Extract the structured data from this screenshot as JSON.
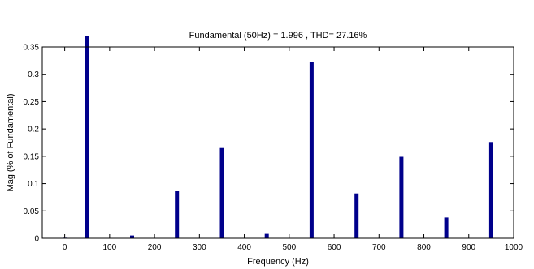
{
  "chart_data": {
    "type": "bar",
    "title": "Fundamental (50Hz) = 1.996 , THD= 27.16%",
    "xlabel": "Frequency (Hz)",
    "ylabel": "Mag (% of Fundamental)",
    "xlim": [
      -50,
      1000
    ],
    "ylim": [
      0,
      0.35
    ],
    "xticks": [
      0,
      100,
      200,
      300,
      400,
      500,
      600,
      700,
      800,
      900,
      1000
    ],
    "yticks": [
      0,
      0.05,
      0.1,
      0.15,
      0.2,
      0.25,
      0.3,
      0.35
    ],
    "ytick_labels": [
      "0",
      "0.05",
      "0.1",
      "0.15",
      "0.2",
      "0.25",
      "0.3",
      "0.35"
    ],
    "grid": false,
    "bar_color": "#00008b",
    "x": [
      0,
      50,
      150,
      250,
      350,
      450,
      550,
      650,
      750,
      850,
      950
    ],
    "values": [
      0.001,
      0.37,
      0.005,
      0.086,
      0.165,
      0.008,
      0.322,
      0.082,
      0.149,
      0.038,
      0.176
    ]
  }
}
